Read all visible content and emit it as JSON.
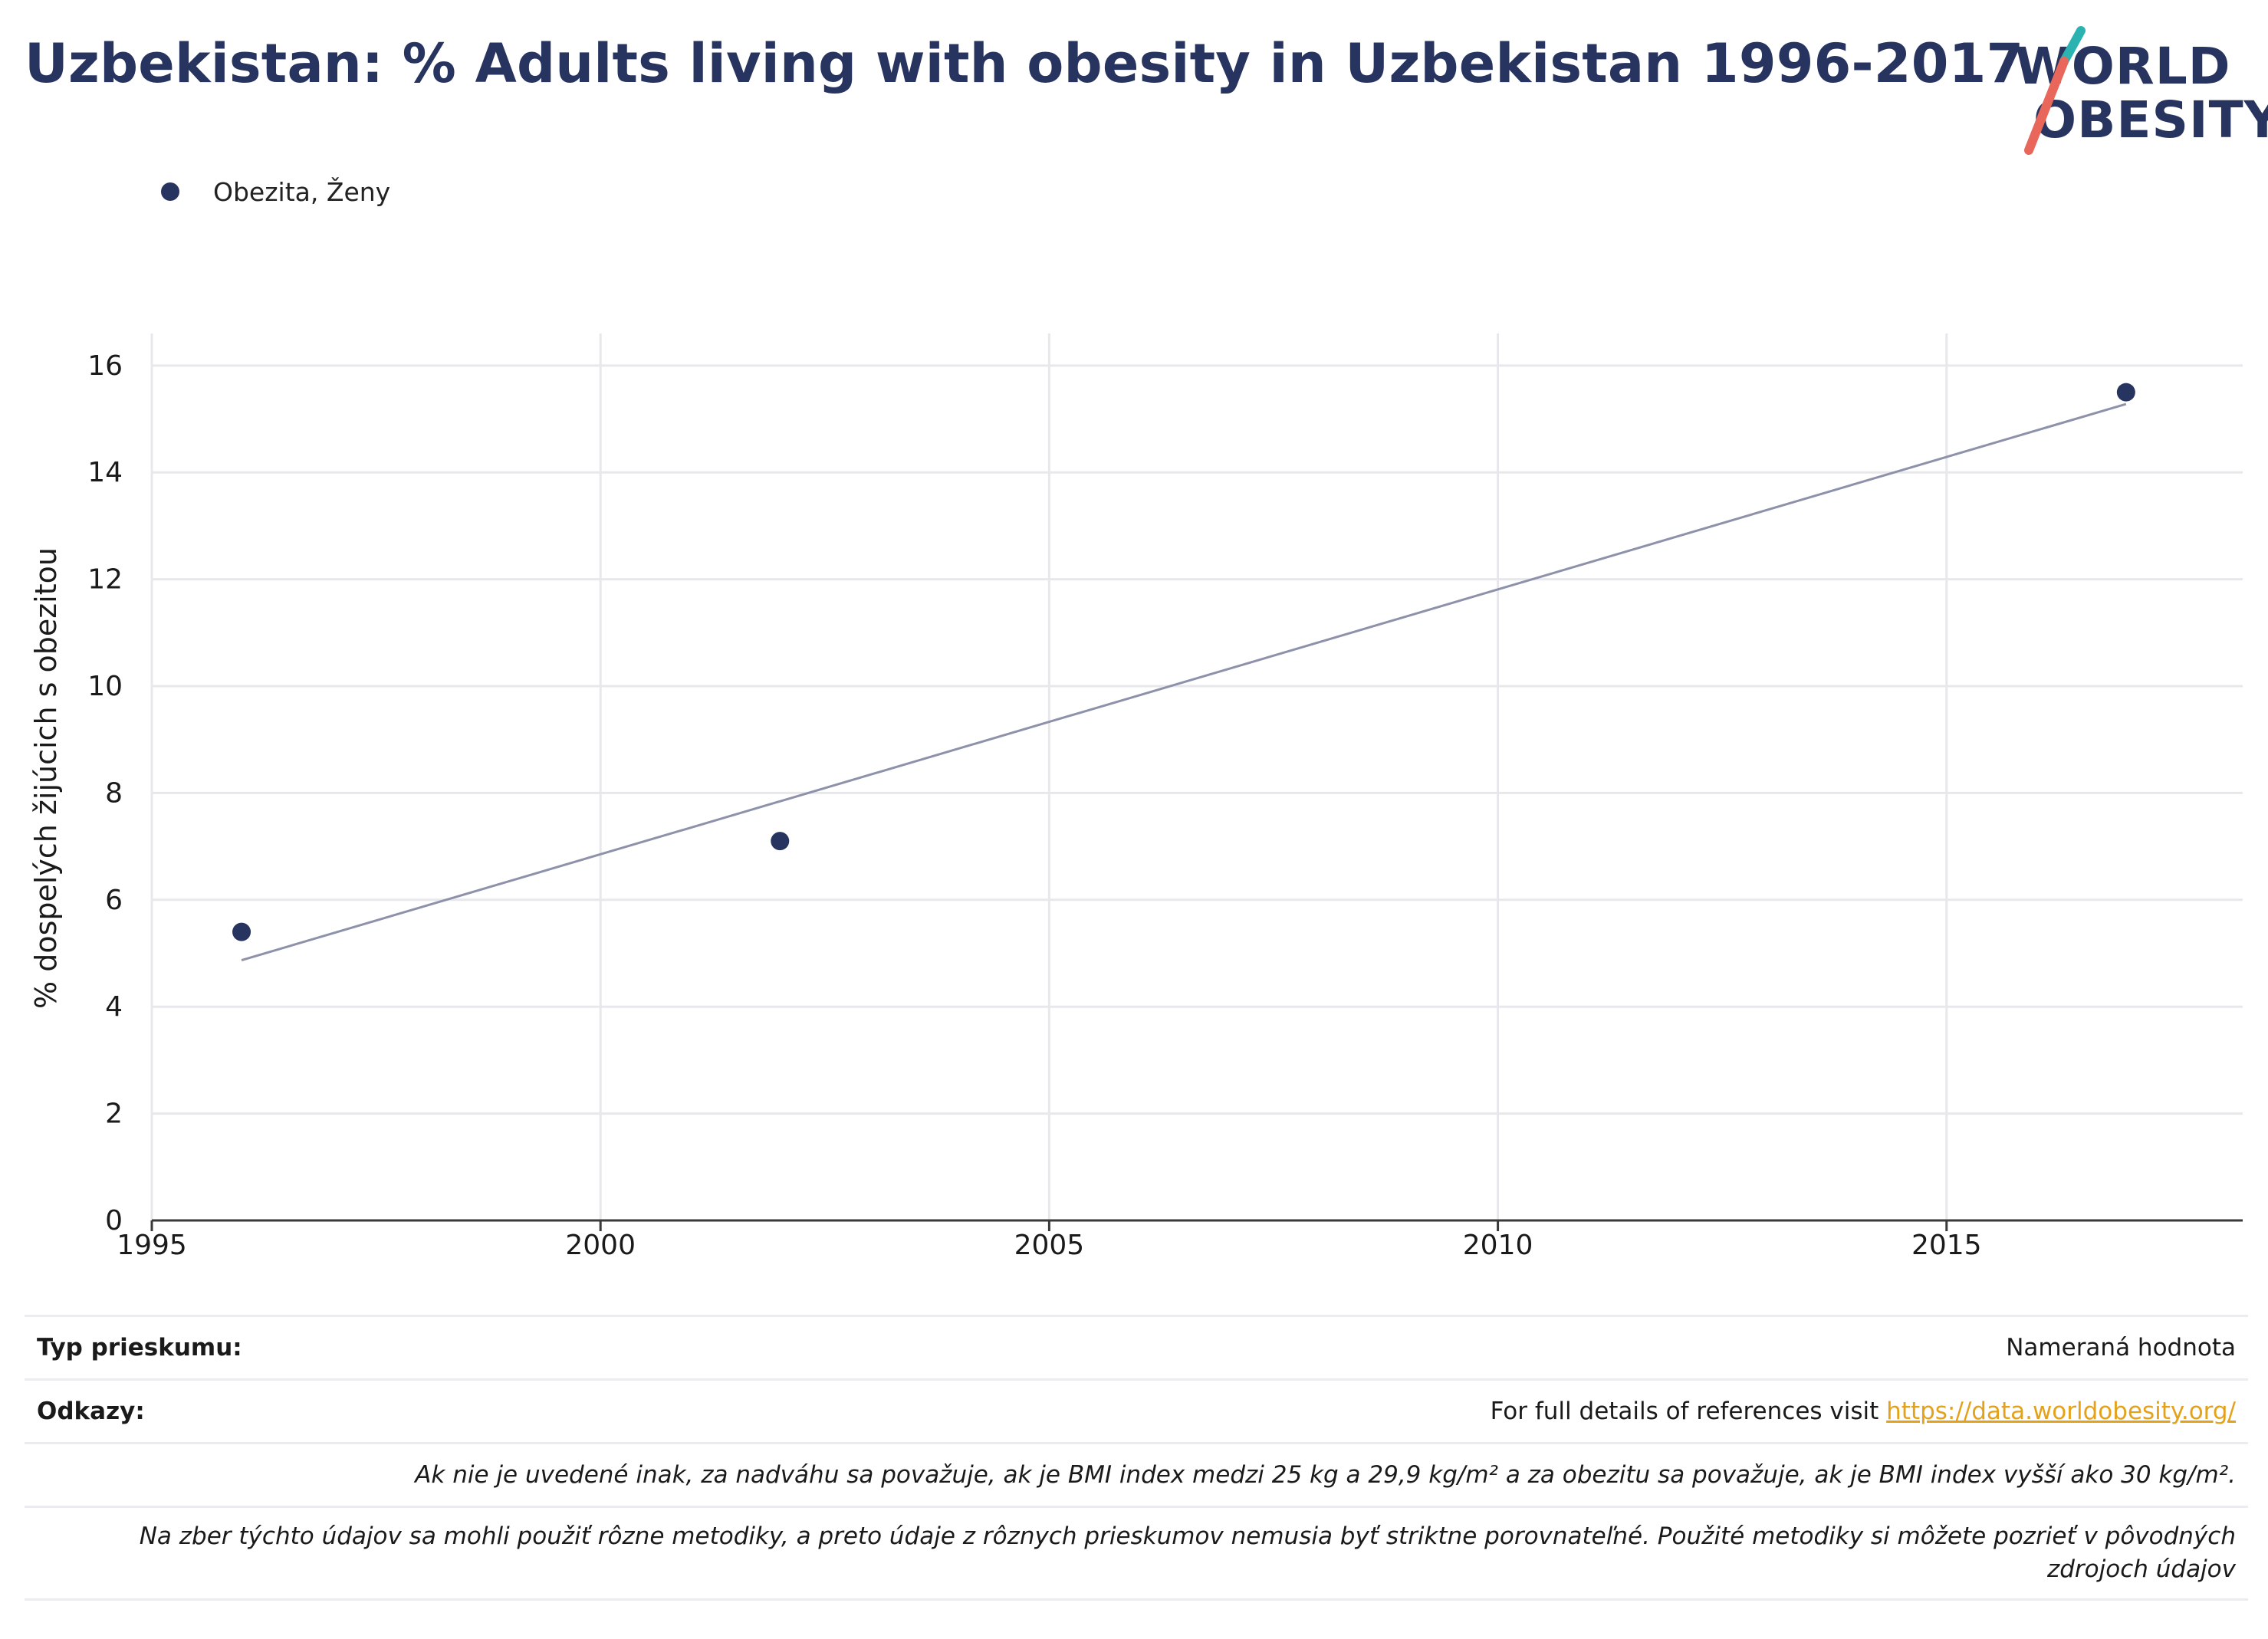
{
  "title": "Uzbekistan: % Adults living with obesity in Uzbekistan 1996-2017",
  "logo": {
    "line1": "WORLD",
    "line2": "OBESITY",
    "slash_colors": [
      "#2bb3b1",
      "#e8675a"
    ]
  },
  "legend": {
    "label": "Obezita, Ženy",
    "color": "#283460"
  },
  "chart_data": {
    "type": "scatter",
    "title": "Uzbekistan: % Adults living with obesity in Uzbekistan 1996-2017",
    "xlabel": "",
    "ylabel": "% dospelých žijúcich s obezitou",
    "xlim": [
      1995,
      2018.3
    ],
    "ylim": [
      0,
      16.6
    ],
    "x_ticks": [
      1995,
      2000,
      2005,
      2010,
      2015
    ],
    "y_ticks": [
      0,
      2,
      4,
      6,
      8,
      10,
      12,
      14,
      16
    ],
    "grid": true,
    "legend_position": "top-left",
    "series": [
      {
        "name": "Obezita, Ženy",
        "color": "#283460",
        "points": [
          {
            "x": 1996,
            "y": 5.4
          },
          {
            "x": 2002,
            "y": 7.1
          },
          {
            "x": 2017,
            "y": 15.5
          }
        ]
      }
    ],
    "trendline": {
      "color": "#8d92aa",
      "x": [
        1996,
        2017
      ],
      "y": [
        4.87,
        15.28
      ]
    }
  },
  "footer": {
    "survey_type_label": "Typ prieskumu:",
    "survey_type_value": "Nameraná hodnota",
    "references_label": "Odkazy:",
    "references_text": "For full details of references visit ",
    "references_link": "https://data.worldobesity.org/",
    "note_bmi": "Ak nie je uvedené inak, za nadváhu sa považuje, ak je BMI index medzi 25 kg a 29,9 kg/m² a za obezitu sa považuje, ak je BMI index vyšší ako 30 kg/m².",
    "note_methods": "Na zber týchto údajov sa mohli použiť rôzne metodiky, a preto údaje z rôznych prieskumov nemusia byť striktne porovnateľné. Použité metodiky si môžete pozrieť v pôvodných zdrojoch údajov"
  }
}
